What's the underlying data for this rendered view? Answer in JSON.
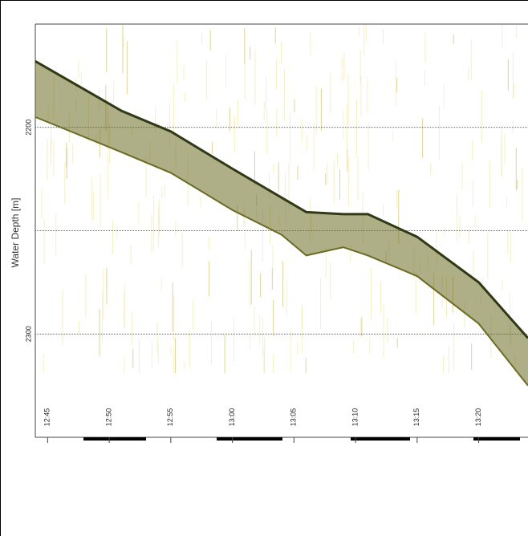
{
  "chart_data": {
    "type": "echogram",
    "ylabel": "Water Depth [m]",
    "ylim": [
      2150,
      2350
    ],
    "yticks": [
      2200,
      2300
    ],
    "ygrid": [
      2200,
      2250,
      2300
    ],
    "xlim": [
      "12:44",
      "13:24"
    ],
    "xticks": [
      "12:45",
      "12:50",
      "12:55",
      "13:00",
      "13:05",
      "13:10",
      "13:15",
      "13:20"
    ],
    "x": [
      "12:44",
      "12:51",
      "12:55",
      "13:00",
      "13:04",
      "13:06",
      "13:09",
      "13:11",
      "13:15",
      "13:20",
      "13:24"
    ],
    "series": [
      {
        "color": "#2f3a14",
        "values": [
          2168,
          2192,
          2202,
          2220,
          2234,
          2241,
          2242,
          2242,
          2253,
          2275,
          2302
        ]
      },
      {
        "color": "#6b6b25",
        "values": [
          2195,
          2212,
          2222,
          2240,
          2252,
          2262,
          2258,
          2262,
          2272,
          2295,
          2325
        ]
      }
    ]
  }
}
